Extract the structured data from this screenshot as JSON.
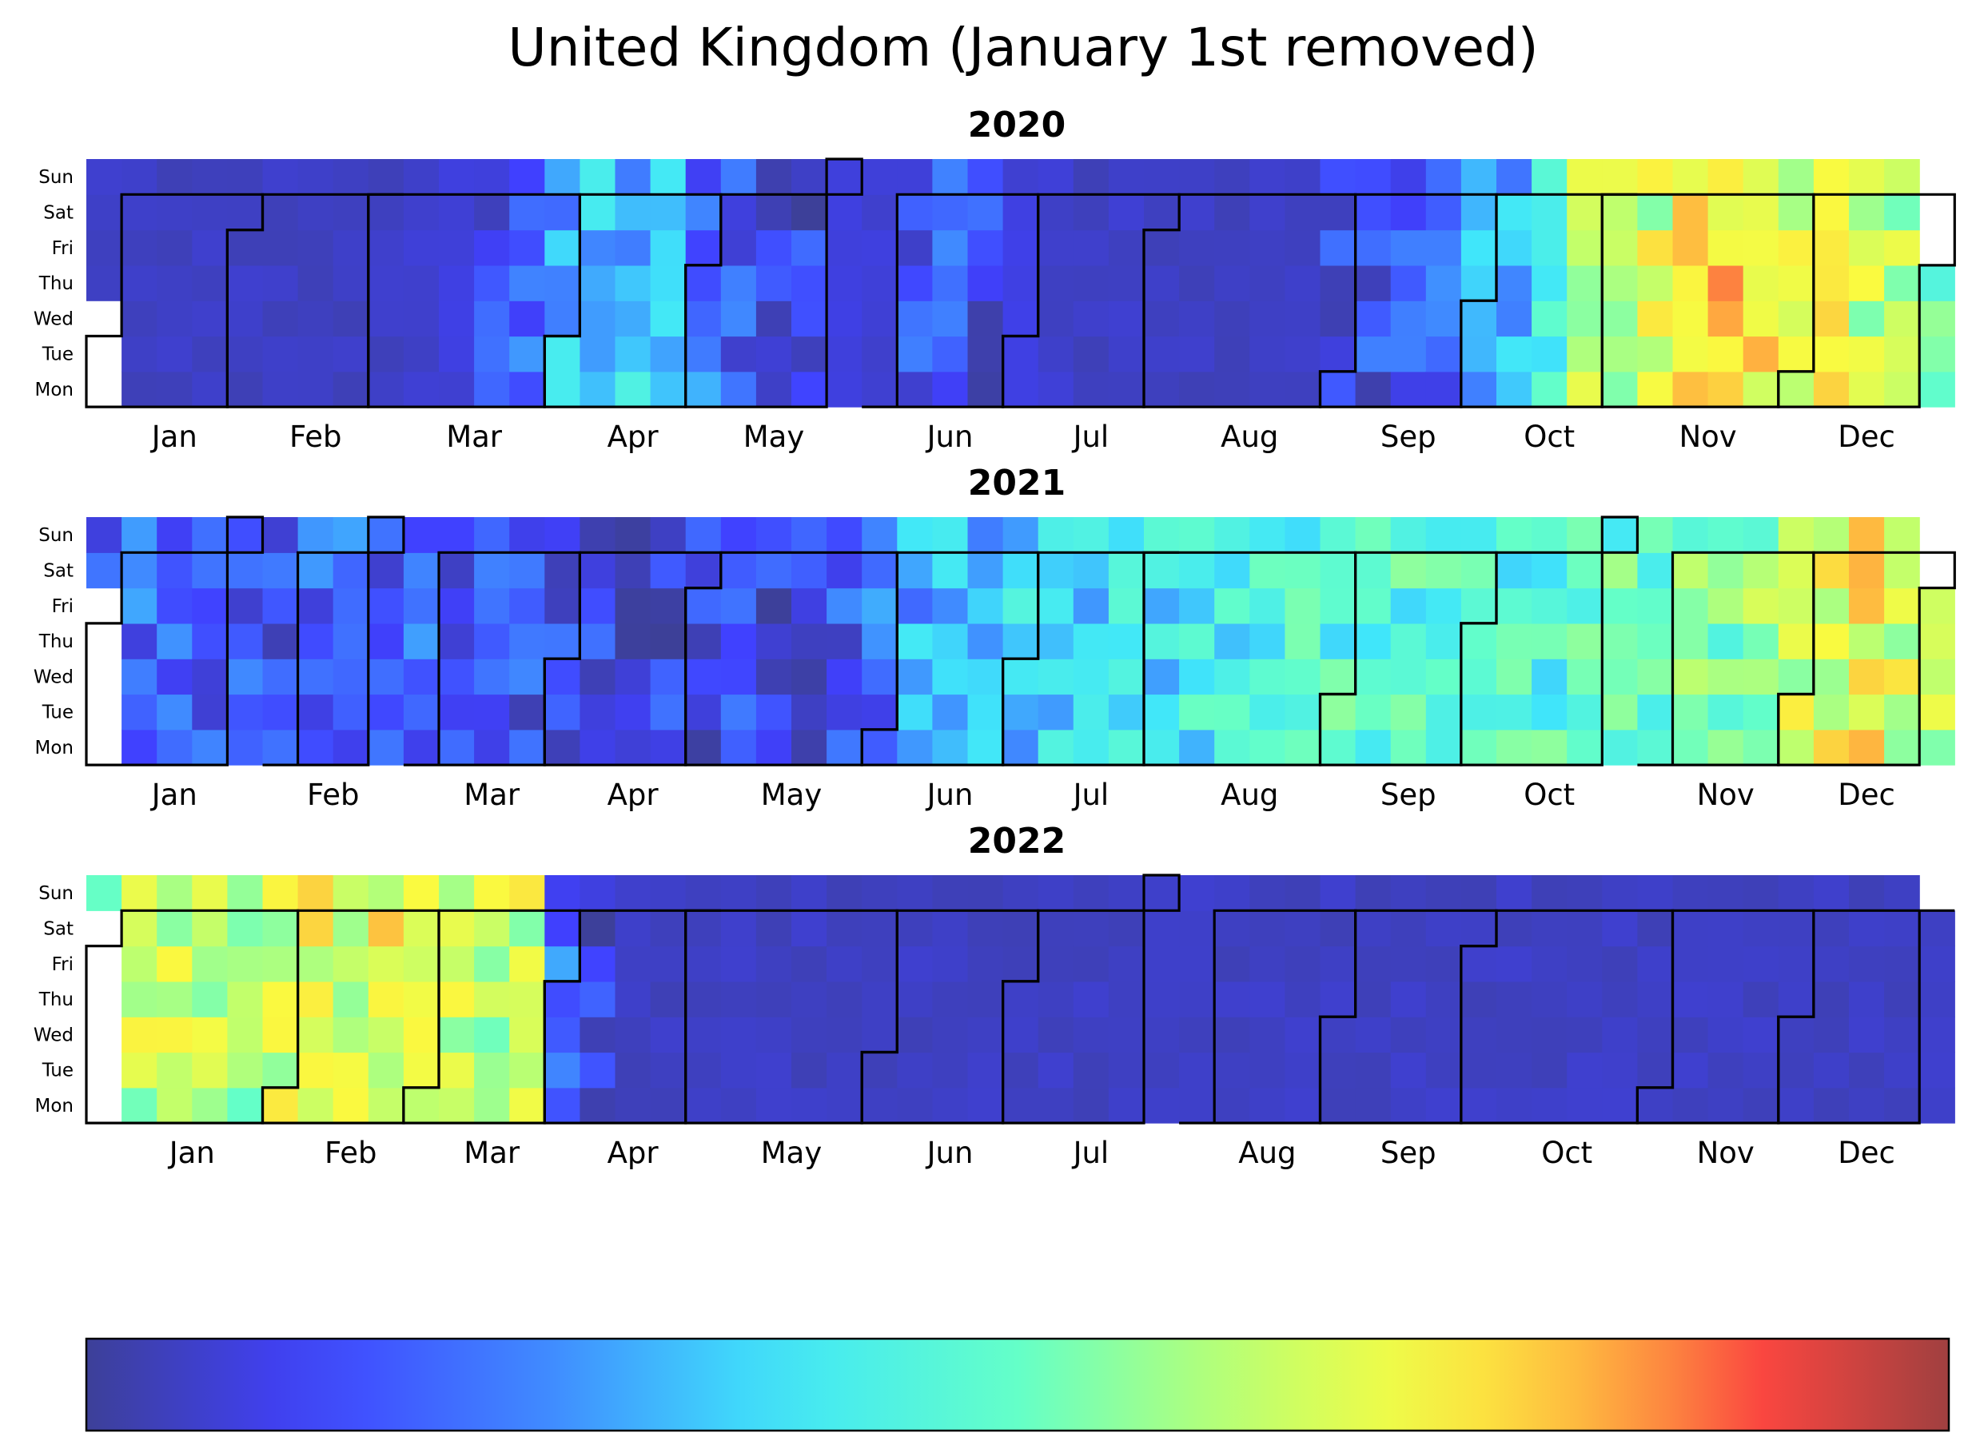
{
  "title": "United Kingdom (January 1st removed)",
  "chart_data": {
    "type": "heatmap",
    "colormap": "jet",
    "day_labels": [
      "Mon",
      "Tue",
      "Wed",
      "Thu",
      "Fri",
      "Sat",
      "Sun"
    ],
    "month_labels": [
      "Jan",
      "Feb",
      "Mar",
      "Apr",
      "May",
      "Jun",
      "Jul",
      "Aug",
      "Sep",
      "Oct",
      "Nov",
      "Dec"
    ],
    "colorbar": {
      "visible": true,
      "tick_labels": [],
      "range": [
        0,
        1
      ]
    },
    "years": [
      {
        "year": "2020",
        "first_weekday": 2,
        "weekly_levels": [
          0.05,
          0.05,
          0.05,
          0.05,
          0.05,
          0.05,
          0.05,
          0.05,
          0.05,
          0.06,
          0.08,
          0.1,
          0.18,
          0.3,
          0.35,
          0.32,
          0.28,
          0.2,
          0.15,
          0.12,
          0.1,
          0.08,
          0.07,
          0.12,
          0.15,
          0.1,
          0.08,
          0.06,
          0.05,
          0.06,
          0.05,
          0.05,
          0.05,
          0.05,
          0.06,
          0.1,
          0.12,
          0.15,
          0.2,
          0.28,
          0.3,
          0.45,
          0.6,
          0.62,
          0.65,
          0.7,
          0.75,
          0.72,
          0.68,
          0.66,
          0.62,
          0.6,
          0.55
        ]
      },
      {
        "year": "2021",
        "first_weekday": 4,
        "weekly_levels": [
          0.15,
          0.18,
          0.16,
          0.18,
          0.15,
          0.14,
          0.16,
          0.18,
          0.17,
          0.18,
          0.16,
          0.15,
          0.14,
          0.12,
          0.12,
          0.1,
          0.1,
          0.12,
          0.12,
          0.1,
          0.12,
          0.14,
          0.2,
          0.28,
          0.3,
          0.32,
          0.34,
          0.36,
          0.36,
          0.38,
          0.38,
          0.4,
          0.42,
          0.44,
          0.45,
          0.46,
          0.46,
          0.45,
          0.45,
          0.44,
          0.44,
          0.45,
          0.46,
          0.48,
          0.5,
          0.52,
          0.54,
          0.56,
          0.66,
          0.68,
          0.7,
          0.66,
          0.64
        ]
      },
      {
        "year": "2022",
        "first_weekday": 5,
        "weekly_levels": [
          0.6,
          0.62,
          0.62,
          0.6,
          0.55,
          0.65,
          0.68,
          0.66,
          0.7,
          0.62,
          0.64,
          0.62,
          0.64,
          0.2,
          0.1,
          0.05,
          0.05,
          0.05,
          0.05,
          0.05,
          0.05,
          0.05,
          0.05,
          0.05,
          0.05,
          0.05,
          0.05,
          0.05,
          0.05,
          0.05,
          0.05,
          0.05,
          0.05,
          0.05,
          0.05,
          0.05,
          0.05,
          0.05,
          0.05,
          0.05,
          0.05,
          0.05,
          0.05,
          0.05,
          0.05,
          0.05,
          0.05,
          0.05,
          0.05,
          0.05,
          0.05,
          0.05,
          0.05
        ]
      }
    ]
  }
}
